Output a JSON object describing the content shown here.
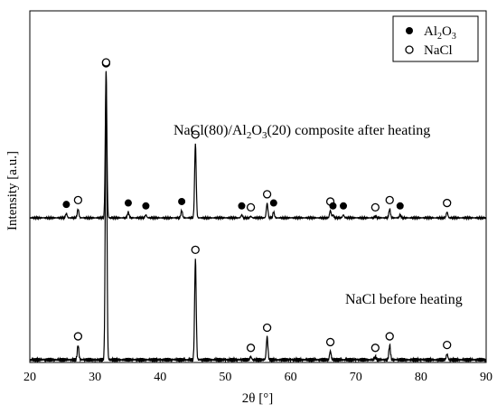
{
  "chart_data": {
    "type": "line",
    "xlabel": "2θ [°]",
    "ylabel": "Intensity [a.u.]",
    "xlim": [
      20,
      90
    ],
    "xticks": [
      20,
      30,
      40,
      50,
      60,
      70,
      80,
      90
    ],
    "xtick_labels": [
      "20",
      "30",
      "40",
      "50",
      "60",
      "70",
      "80",
      "90"
    ],
    "grid": false,
    "legend_position": "top-right",
    "legend": [
      {
        "marker": "filled-circle",
        "label_main": "Al",
        "label_sub1": "2",
        "label_mid": "O",
        "label_sub2": "3"
      },
      {
        "marker": "open-circle",
        "label_main": "NaCl"
      }
    ],
    "series": [
      {
        "label": "NaCl(80)/Al2O3(20) composite after heating",
        "label_parts": {
          "a": "NaCl(80)/Al",
          "b": "2",
          "c": "O",
          "d": "3",
          "e": "(20) composite after heating"
        },
        "peaks": [
          {
            "x": 25.6,
            "h": 0.03,
            "marker": "filled"
          },
          {
            "x": 27.4,
            "h": 0.06,
            "marker": "open"
          },
          {
            "x": 31.7,
            "h": 1.0,
            "marker": "open"
          },
          {
            "x": 35.1,
            "h": 0.04,
            "marker": "filled"
          },
          {
            "x": 37.8,
            "h": 0.02,
            "marker": "filled"
          },
          {
            "x": 43.3,
            "h": 0.05,
            "marker": "filled"
          },
          {
            "x": 45.4,
            "h": 0.51,
            "marker": "open"
          },
          {
            "x": 52.5,
            "h": 0.02,
            "marker": "filled"
          },
          {
            "x": 53.9,
            "h": 0.01,
            "marker": "open"
          },
          {
            "x": 56.4,
            "h": 0.1,
            "marker": "open"
          },
          {
            "x": 57.4,
            "h": 0.04,
            "marker": "filled"
          },
          {
            "x": 66.1,
            "h": 0.05,
            "marker": "open"
          },
          {
            "x": 66.5,
            "h": 0.02,
            "marker": "filled"
          },
          {
            "x": 68.1,
            "h": 0.02,
            "marker": "filled"
          },
          {
            "x": 73.0,
            "h": 0.01,
            "marker": "open"
          },
          {
            "x": 75.2,
            "h": 0.06,
            "marker": "open"
          },
          {
            "x": 76.8,
            "h": 0.02,
            "marker": "filled"
          },
          {
            "x": 84.0,
            "h": 0.04,
            "marker": "open"
          }
        ]
      },
      {
        "label": "NaCl before heating",
        "peaks": [
          {
            "x": 27.4,
            "h": 0.05,
            "marker": "open"
          },
          {
            "x": 31.7,
            "h": 1.0,
            "marker": "open"
          },
          {
            "x": 45.4,
            "h": 0.35,
            "marker": "open"
          },
          {
            "x": 53.9,
            "h": 0.01,
            "marker": "open"
          },
          {
            "x": 56.4,
            "h": 0.08,
            "marker": "open"
          },
          {
            "x": 66.1,
            "h": 0.03,
            "marker": "open"
          },
          {
            "x": 73.0,
            "h": 0.01,
            "marker": "open"
          },
          {
            "x": 75.2,
            "h": 0.05,
            "marker": "open"
          },
          {
            "x": 84.0,
            "h": 0.02,
            "marker": "open"
          }
        ]
      }
    ]
  }
}
